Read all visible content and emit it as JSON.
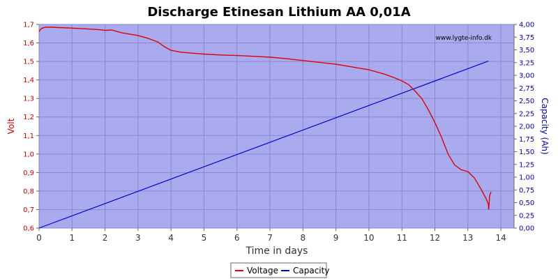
{
  "chart_data": {
    "type": "line",
    "title": "Discharge Etinesan Lithium AA 0,01A",
    "watermark": "www.lygte-info.dk",
    "xlabel": "Time in days",
    "ylabel_left": "Volt",
    "ylabel_right": "Capacity (Ah)",
    "xlim": [
      0,
      14.4
    ],
    "ylim_left": [
      0.6,
      1.7
    ],
    "ylim_right": [
      0,
      4.0
    ],
    "x_ticks": [
      "0",
      "1",
      "2",
      "3",
      "4",
      "5",
      "6",
      "7",
      "8",
      "9",
      "10",
      "11",
      "12",
      "13",
      "14"
    ],
    "y_left_ticks": [
      "0,6",
      "0,7",
      "0,8",
      "0,9",
      "1,0",
      "1,1",
      "1,2",
      "1,3",
      "1,4",
      "1,5",
      "1,6",
      "1,7"
    ],
    "y_right_ticks": [
      "0,00",
      "0,25",
      "0,50",
      "0,75",
      "1,00",
      "1,25",
      "1,50",
      "1,75",
      "2,00",
      "2,25",
      "2,50",
      "2,75",
      "3,00",
      "3,25",
      "3,50",
      "3,75",
      "4,00"
    ],
    "grid": true,
    "legend_position": "bottom-center",
    "colors": {
      "background": "#aaaaee",
      "voltage": "#dd0000",
      "capacity": "#0000cc",
      "grid": "#8888cc"
    },
    "series": [
      {
        "name": "Voltage",
        "axis": "left",
        "x": [
          0,
          0.03,
          0.06,
          0.1,
          0.2,
          0.4,
          0.6,
          1.0,
          1.5,
          1.8,
          2.0,
          2.2,
          2.3,
          2.5,
          3.0,
          3.3,
          3.6,
          3.8,
          4.0,
          4.3,
          4.6,
          5.0,
          5.5,
          6.0,
          6.5,
          7.0,
          7.5,
          8.0,
          8.5,
          9.0,
          9.5,
          10.0,
          10.5,
          10.8,
          11.0,
          11.2,
          11.4,
          11.6,
          11.8,
          12.0,
          12.2,
          12.4,
          12.6,
          12.8,
          13.0,
          13.2,
          13.4,
          13.55,
          13.62,
          13.63,
          13.66,
          13.7
        ],
        "y": [
          1.66,
          1.67,
          1.675,
          1.68,
          1.685,
          1.685,
          1.683,
          1.68,
          1.675,
          1.672,
          1.668,
          1.67,
          1.665,
          1.655,
          1.64,
          1.625,
          1.605,
          1.58,
          1.56,
          1.55,
          1.545,
          1.54,
          1.535,
          1.532,
          1.528,
          1.523,
          1.515,
          1.505,
          1.495,
          1.485,
          1.47,
          1.455,
          1.43,
          1.41,
          1.395,
          1.375,
          1.34,
          1.3,
          1.24,
          1.17,
          1.09,
          1.0,
          0.94,
          0.915,
          0.905,
          0.87,
          0.81,
          0.76,
          0.73,
          0.7,
          0.775,
          0.795
        ]
      },
      {
        "name": "Capacity",
        "axis": "right",
        "x": [
          0,
          13.62
        ],
        "y": [
          0,
          3.28
        ]
      }
    ]
  }
}
